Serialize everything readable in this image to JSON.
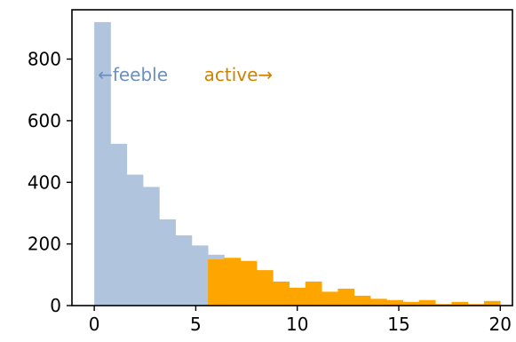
{
  "chart_data": {
    "type": "bar",
    "title": "",
    "xlabel": "",
    "ylabel": "",
    "xlim": [
      -1.1,
      20.6
    ],
    "ylim": [
      0,
      960
    ],
    "xticks": [
      0,
      5,
      10,
      15,
      20
    ],
    "yticks": [
      0,
      200,
      400,
      600,
      800
    ],
    "grid": false,
    "legend": "none",
    "bin_width": 0.8,
    "series": [
      {
        "color": "#b0c4de",
        "bins": [
          {
            "x0": 0.0,
            "x1": 0.8,
            "value": 920
          },
          {
            "x0": 0.8,
            "x1": 1.6,
            "value": 525
          },
          {
            "x0": 1.6,
            "x1": 2.4,
            "value": 425
          },
          {
            "x0": 2.4,
            "x1": 3.2,
            "value": 385
          },
          {
            "x0": 3.2,
            "x1": 4.0,
            "value": 280
          },
          {
            "x0": 4.0,
            "x1": 4.8,
            "value": 228
          },
          {
            "x0": 4.8,
            "x1": 5.6,
            "value": 195
          },
          {
            "x0": 5.6,
            "x1": 6.4,
            "value": 165
          }
        ]
      },
      {
        "color": "#ffa500",
        "bins": [
          {
            "x0": 5.6,
            "x1": 6.4,
            "value": 150
          },
          {
            "x0": 6.4,
            "x1": 7.2,
            "value": 155
          },
          {
            "x0": 7.2,
            "x1": 8.0,
            "value": 145
          },
          {
            "x0": 8.0,
            "x1": 8.8,
            "value": 115
          },
          {
            "x0": 8.8,
            "x1": 9.6,
            "value": 78
          },
          {
            "x0": 9.6,
            "x1": 10.4,
            "value": 58
          },
          {
            "x0": 10.4,
            "x1": 11.2,
            "value": 78
          },
          {
            "x0": 11.2,
            "x1": 12.0,
            "value": 45
          },
          {
            "x0": 12.0,
            "x1": 12.8,
            "value": 55
          },
          {
            "x0": 12.8,
            "x1": 13.6,
            "value": 32
          },
          {
            "x0": 13.6,
            "x1": 14.4,
            "value": 22
          },
          {
            "x0": 14.4,
            "x1": 15.2,
            "value": 18
          },
          {
            "x0": 15.2,
            "x1": 16.0,
            "value": 12
          },
          {
            "x0": 16.0,
            "x1": 16.8,
            "value": 18
          },
          {
            "x0": 16.8,
            "x1": 17.6,
            "value": 5
          },
          {
            "x0": 17.6,
            "x1": 18.4,
            "value": 12
          },
          {
            "x0": 18.4,
            "x1": 19.2,
            "value": 5
          },
          {
            "x0": 19.2,
            "x1": 20.0,
            "value": 15
          }
        ]
      }
    ],
    "annotations": [
      {
        "text": "←feeble",
        "color": "#6a8fc0",
        "x": 1.9,
        "y": 730
      },
      {
        "text": "active→",
        "color": "#cc8400",
        "x": 7.1,
        "y": 730
      }
    ]
  }
}
